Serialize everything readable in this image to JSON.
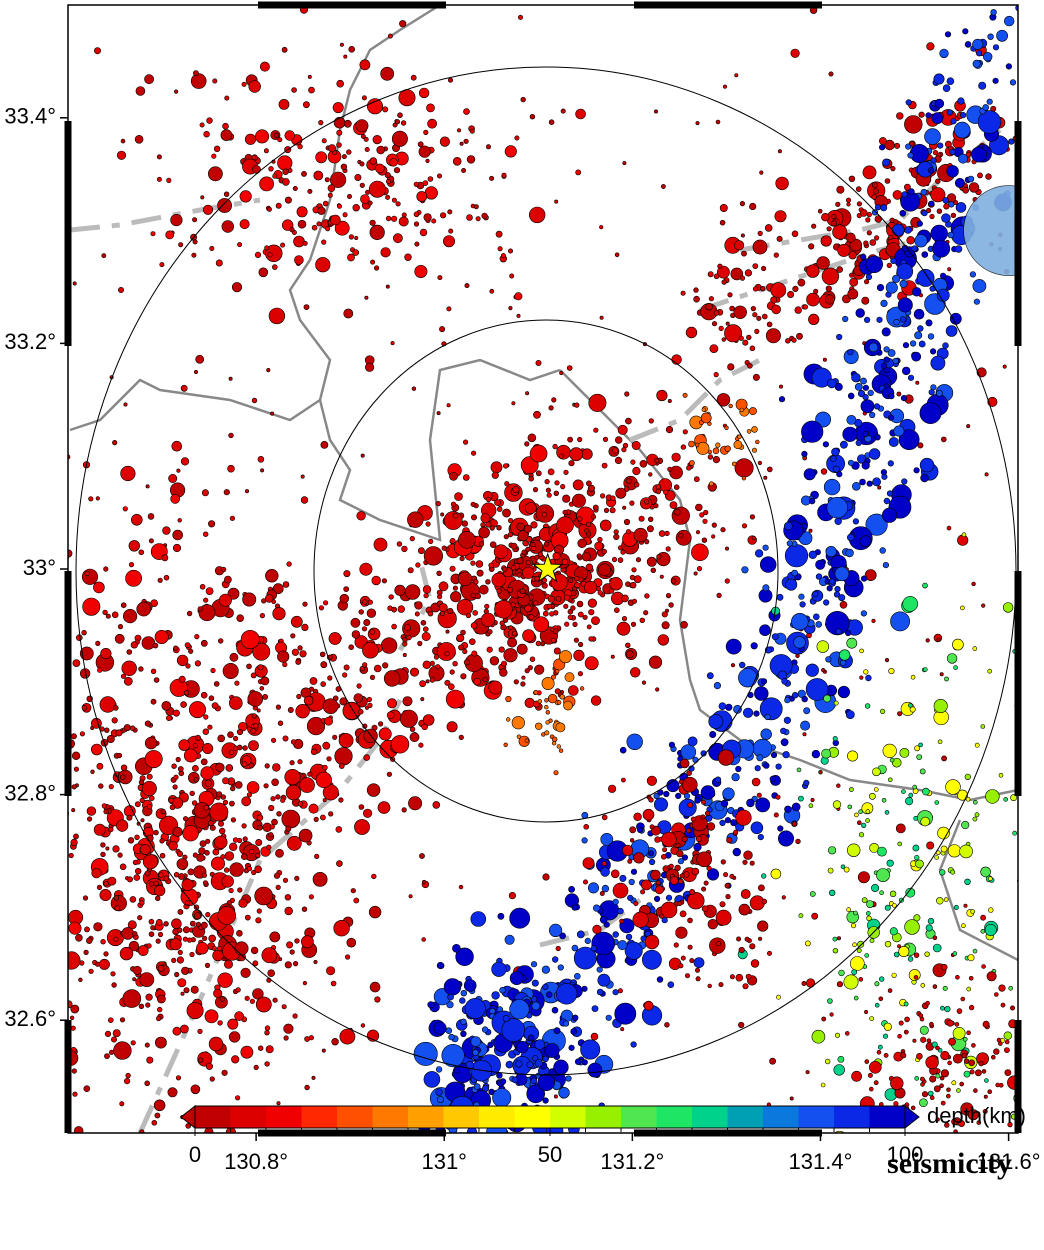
{
  "chart_data": {
    "type": "map",
    "title": "seismicity",
    "xlim": [
      130.6,
      131.61
    ],
    "ylim": [
      32.5,
      33.5
    ],
    "xticks": [
      {
        "value": 130.8,
        "label": "130.8°"
      },
      {
        "value": 131,
        "label": "131°"
      },
      {
        "value": 131.2,
        "label": "131.2°"
      },
      {
        "value": 131.4,
        "label": "131.4°"
      },
      {
        "value": 131.6,
        "label": "131.6°"
      }
    ],
    "yticks": [
      {
        "value": 32.6,
        "label": "32.6°"
      },
      {
        "value": 32.8,
        "label": "32.8°"
      },
      {
        "value": 33,
        "label": "33°"
      },
      {
        "value": 33.2,
        "label": "33.2°"
      },
      {
        "value": 33.4,
        "label": "33.4°"
      }
    ],
    "epicenter": {
      "lon": 131.11,
      "lat": 33.0,
      "color": "#ffff00"
    },
    "colorbar": {
      "label": "depth(km)",
      "lim": [
        0,
        100
      ],
      "ticks": [
        0,
        50,
        100
      ],
      "colors": [
        "#c00000",
        "#dc0000",
        "#f00000",
        "#ff2800",
        "#ff5000",
        "#ff7800",
        "#ffa000",
        "#ffc800",
        "#ffeb00",
        "#ffff00",
        "#d2ff00",
        "#96f000",
        "#50e650",
        "#1ee664",
        "#00d28c",
        "#00a0b4",
        "#0a78dc",
        "#1450f0",
        "#0a28e6",
        "#0000c8"
      ]
    }
  }
}
